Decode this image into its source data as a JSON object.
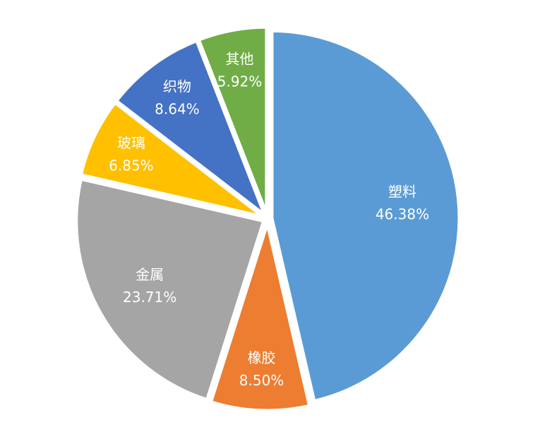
{
  "chart_data": {
    "type": "pie",
    "categories": [
      "塑料",
      "橡胶",
      "金属",
      "玻璃",
      "织物",
      "其他"
    ],
    "values": [
      46.38,
      8.5,
      23.71,
      6.85,
      8.64,
      5.92
    ],
    "value_labels": [
      "46.38%",
      "8.50%",
      "23.71%",
      "6.85%",
      "8.64%",
      "5.92%"
    ],
    "colors": [
      "#5b9bd5",
      "#ed7d31",
      "#a5a5a5",
      "#ffc000",
      "#4472c4",
      "#70ad47"
    ]
  }
}
